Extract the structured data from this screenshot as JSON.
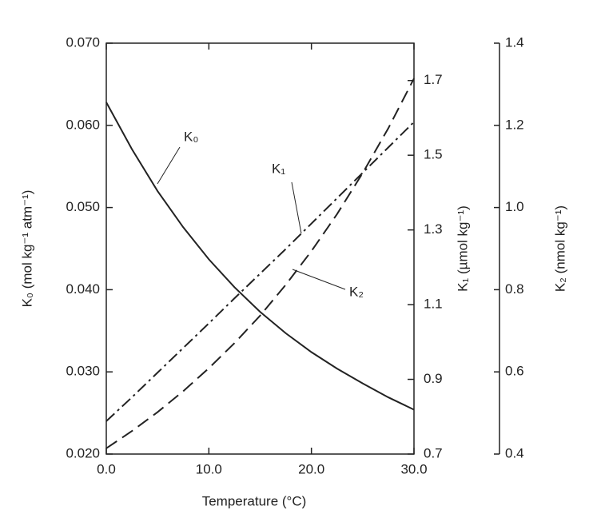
{
  "chart_data": {
    "type": "line",
    "x_label": "Temperature (°C)",
    "y_label": "K₀ (mol kg⁻¹ atm⁻¹)",
    "y2_label": "K₁ (µmol kg⁻¹)",
    "y3_label": "K₂ (nmol kg⁻¹)",
    "x": [
      0,
      2.5,
      5,
      7.5,
      10,
      12.5,
      15,
      17.5,
      20,
      22.5,
      25,
      27.5,
      30
    ],
    "xlim": [
      0,
      30
    ],
    "xticks": [
      {
        "value": 0,
        "label": "0.0"
      },
      {
        "value": 10,
        "label": "10.0"
      },
      {
        "value": 20,
        "label": "20.0"
      },
      {
        "value": 30,
        "label": "30.0"
      }
    ],
    "ylim": [
      0.02,
      0.07
    ],
    "yticks": [
      {
        "value": 0.02,
        "label": "0.020"
      },
      {
        "value": 0.03,
        "label": "0.030"
      },
      {
        "value": 0.04,
        "label": "0.040"
      },
      {
        "value": 0.05,
        "label": "0.050"
      },
      {
        "value": 0.06,
        "label": "0.060"
      },
      {
        "value": 0.07,
        "label": "0.070"
      }
    ],
    "y2lim": [
      0.7,
      1.8
    ],
    "y2ticks": [
      0.7,
      0.9,
      1.1,
      1.3,
      1.5,
      1.7
    ],
    "y3lim": [
      0.4,
      1.4
    ],
    "y3ticks": [
      0.4,
      0.6,
      0.8,
      {
        "value": 1,
        "label": "1.0"
      },
      1.2,
      1.4
    ],
    "series": [
      {
        "name": "K₀",
        "color": "#222222",
        "dash": "none",
        "axis": "y",
        "values": [
          0.0628,
          0.0571,
          0.052,
          0.0476,
          0.0437,
          0.0403,
          0.0373,
          0.0347,
          0.0324,
          0.0304,
          0.0286,
          0.0269,
          0.0254
        ]
      },
      {
        "name": "K₁",
        "color": "#222222",
        "dash": "14 5 3 5",
        "axis": "y2",
        "values": [
          0.788,
          0.852,
          0.918,
          0.984,
          1.05,
          1.117,
          1.183,
          1.249,
          1.317,
          1.385,
          1.453,
          1.521,
          1.589
        ]
      },
      {
        "name": "K₂",
        "color": "#222222",
        "dash": "16 8",
        "axis": "y3",
        "values": [
          0.414,
          0.456,
          0.502,
          0.553,
          0.609,
          0.67,
          0.737,
          0.812,
          0.894,
          0.984,
          1.084,
          1.193,
          1.314
        ]
      }
    ]
  }
}
